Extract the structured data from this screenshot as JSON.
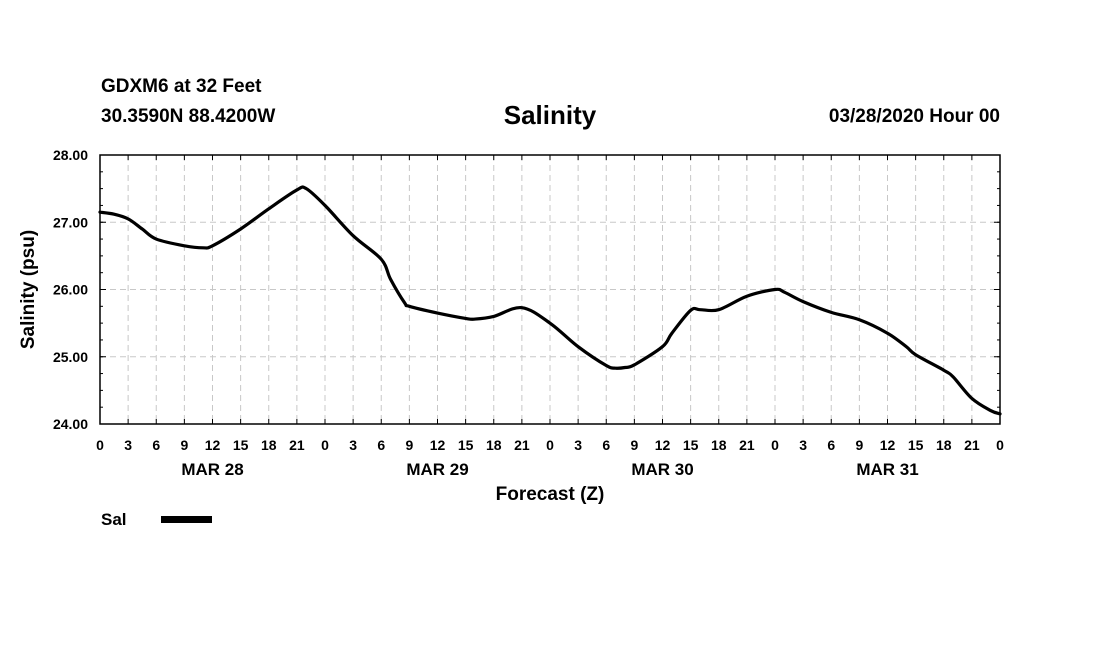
{
  "header": {
    "station": "GDXM6 at 32 Feet",
    "coordinates": "30.3590N 88.4200W",
    "title": "Salinity",
    "run": "03/28/2020 Hour 00"
  },
  "legend": {
    "label": "Sal",
    "color": "#000000"
  },
  "chart_data": {
    "type": "line",
    "title": "Salinity",
    "xlabel": "Forecast (Z)",
    "ylabel": "Salinity (psu)",
    "xlim": [
      0,
      96
    ],
    "ylim": [
      24.0,
      28.0
    ],
    "grid": true,
    "legend_position": "bottom-left",
    "y_ticks": [
      {
        "value": 24,
        "label": "24.00"
      },
      {
        "value": 25,
        "label": "25.00"
      },
      {
        "value": 26,
        "label": "26.00"
      },
      {
        "value": 27,
        "label": "27.00"
      },
      {
        "value": 28,
        "label": "28.00"
      }
    ],
    "x_ticks": [
      {
        "hour": 0,
        "label": "0"
      },
      {
        "hour": 3,
        "label": "3"
      },
      {
        "hour": 6,
        "label": "6"
      },
      {
        "hour": 9,
        "label": "9"
      },
      {
        "hour": 12,
        "label": "12"
      },
      {
        "hour": 15,
        "label": "15"
      },
      {
        "hour": 18,
        "label": "18"
      },
      {
        "hour": 21,
        "label": "21"
      },
      {
        "hour": 24,
        "label": "0"
      },
      {
        "hour": 27,
        "label": "3"
      },
      {
        "hour": 30,
        "label": "6"
      },
      {
        "hour": 33,
        "label": "9"
      },
      {
        "hour": 36,
        "label": "12"
      },
      {
        "hour": 39,
        "label": "15"
      },
      {
        "hour": 42,
        "label": "18"
      },
      {
        "hour": 45,
        "label": "21"
      },
      {
        "hour": 48,
        "label": "0"
      },
      {
        "hour": 51,
        "label": "3"
      },
      {
        "hour": 54,
        "label": "6"
      },
      {
        "hour": 57,
        "label": "9"
      },
      {
        "hour": 60,
        "label": "12"
      },
      {
        "hour": 63,
        "label": "15"
      },
      {
        "hour": 66,
        "label": "18"
      },
      {
        "hour": 69,
        "label": "21"
      },
      {
        "hour": 72,
        "label": "0"
      },
      {
        "hour": 75,
        "label": "3"
      },
      {
        "hour": 78,
        "label": "6"
      },
      {
        "hour": 81,
        "label": "9"
      },
      {
        "hour": 84,
        "label": "12"
      },
      {
        "hour": 87,
        "label": "15"
      },
      {
        "hour": 90,
        "label": "18"
      },
      {
        "hour": 93,
        "label": "21"
      },
      {
        "hour": 96,
        "label": "0"
      }
    ],
    "day_labels": [
      {
        "hour": 12,
        "label": "MAR 28"
      },
      {
        "hour": 36,
        "label": "MAR 29"
      },
      {
        "hour": 60,
        "label": "MAR 30"
      },
      {
        "hour": 84,
        "label": "MAR 31"
      }
    ],
    "series": [
      {
        "name": "Sal",
        "color": "#000000",
        "x": [
          0,
          1.5,
          3,
          4.5,
          6,
          9,
          11,
          12,
          15,
          18,
          21,
          22,
          24,
          27,
          30,
          31,
          32.5,
          33,
          36,
          39,
          40,
          42,
          45,
          48,
          51,
          54,
          55,
          56,
          57,
          60,
          61,
          63,
          64,
          66,
          69,
          72,
          73,
          75,
          78,
          81,
          84,
          86,
          87,
          90,
          91,
          93,
          95,
          96
        ],
        "values": [
          27.15,
          27.12,
          27.05,
          26.9,
          26.75,
          26.65,
          26.62,
          26.65,
          26.9,
          27.2,
          27.48,
          27.5,
          27.25,
          26.8,
          26.45,
          26.15,
          25.8,
          25.75,
          25.65,
          25.57,
          25.56,
          25.6,
          25.73,
          25.5,
          25.15,
          24.87,
          24.83,
          24.84,
          24.88,
          25.15,
          25.35,
          25.69,
          25.7,
          25.7,
          25.9,
          26.0,
          25.96,
          25.82,
          25.66,
          25.55,
          25.35,
          25.15,
          25.03,
          24.8,
          24.7,
          24.38,
          24.2,
          24.15
        ]
      }
    ]
  }
}
